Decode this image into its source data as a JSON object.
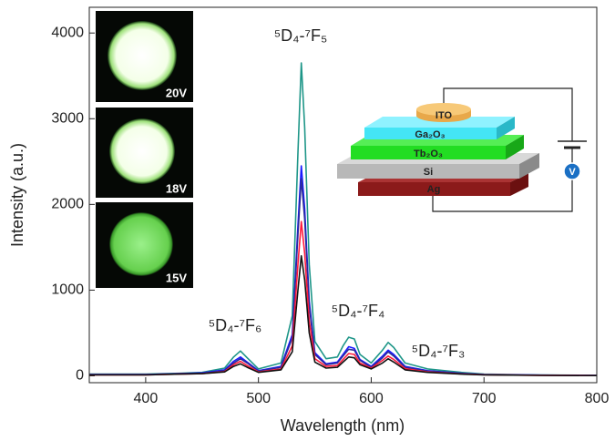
{
  "chart_data": {
    "type": "line",
    "xlabel": "Wavelength (nm)",
    "ylabel": "Intensity (a.u.)",
    "xlim": [
      350,
      800
    ],
    "xticks": [
      400,
      500,
      600,
      700,
      800
    ],
    "ylim": [
      -80,
      4300
    ],
    "yticks": [
      0,
      1000,
      2000,
      3000,
      4000
    ],
    "x": [
      350,
      400,
      430,
      450,
      470,
      478,
      484,
      490,
      500,
      520,
      530,
      535,
      538,
      541,
      545,
      550,
      560,
      570,
      575,
      580,
      585,
      590,
      600,
      610,
      615,
      620,
      630,
      650,
      680,
      700,
      750,
      800
    ],
    "series": [
      {
        "color": "#1e9688",
        "values": [
          20,
          20,
          30,
          40,
          90,
          220,
          290,
          210,
          80,
          150,
          700,
          2600,
          3650,
          2900,
          1300,
          400,
          200,
          220,
          350,
          450,
          430,
          250,
          150,
          300,
          390,
          330,
          150,
          80,
          40,
          20,
          10,
          5
        ]
      },
      {
        "color": "#1a1aff",
        "values": [
          15,
          15,
          25,
          35,
          70,
          170,
          220,
          160,
          60,
          110,
          480,
          1750,
          2450,
          1950,
          870,
          270,
          140,
          160,
          250,
          340,
          320,
          190,
          110,
          230,
          300,
          250,
          110,
          60,
          30,
          15,
          8,
          4
        ]
      },
      {
        "color": "#2b2b9a",
        "values": [
          15,
          15,
          25,
          30,
          60,
          150,
          200,
          150,
          55,
          100,
          440,
          1650,
          2300,
          1830,
          820,
          250,
          130,
          150,
          230,
          310,
          300,
          180,
          100,
          210,
          280,
          230,
          100,
          55,
          28,
          14,
          7,
          4
        ]
      },
      {
        "color": "#ff1a3c",
        "values": [
          10,
          10,
          20,
          25,
          50,
          130,
          170,
          120,
          45,
          80,
          350,
          1300,
          1800,
          1430,
          640,
          200,
          110,
          120,
          190,
          260,
          250,
          150,
          90,
          180,
          230,
          190,
          85,
          45,
          22,
          12,
          6,
          3
        ]
      },
      {
        "color": "#111111",
        "values": [
          10,
          10,
          20,
          25,
          45,
          110,
          140,
          100,
          40,
          70,
          280,
          1000,
          1400,
          1120,
          500,
          160,
          90,
          100,
          160,
          220,
          210,
          130,
          80,
          150,
          200,
          160,
          70,
          40,
          20,
          10,
          5,
          3
        ]
      }
    ],
    "annotations": [
      "⁵D₄-⁷F₅",
      "⁵D₄-⁷F₆",
      "⁵D₄-⁷F₄",
      "⁵D₄-⁷F₃"
    ],
    "photo_labels": [
      "20V",
      "18V",
      "15V"
    ],
    "device_layers": [
      "ITO",
      "Ga₂O₃",
      "Tb₂O₃",
      "Si",
      "Ag"
    ],
    "voltmeter": "V"
  }
}
